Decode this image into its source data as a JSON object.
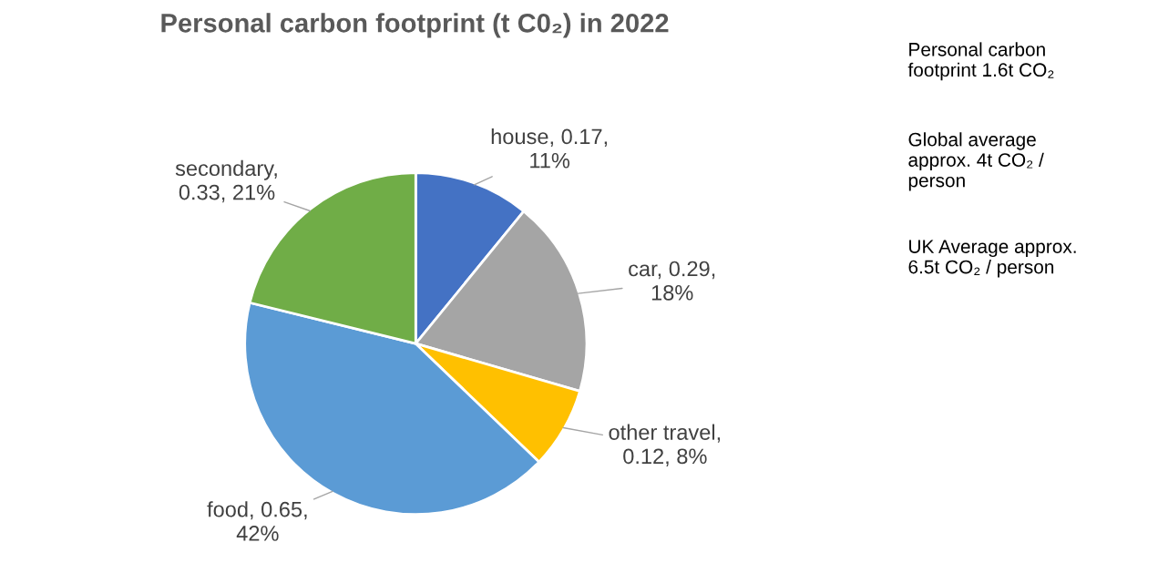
{
  "chart_data": {
    "type": "pie",
    "title": "Personal carbon footprint (t C0₂) in 2022",
    "categories": [
      "house",
      "car",
      "other travel",
      "food",
      "secondary"
    ],
    "values": [
      0.17,
      0.29,
      0.12,
      0.65,
      0.33
    ],
    "colors": [
      "#4472c4",
      "#a5a5a5",
      "#ffc000",
      "#5b9bd5",
      "#70ad47"
    ],
    "value_labels": [
      ", 0.17,\n11%",
      ", 0.29,\n18%",
      ",\n0.12, 8%",
      ", 0.65,\n42%",
      ",\n0.33, 21%"
    ],
    "annotations": [
      "Personal carbon\nfootprint 1.6t CO₂",
      "Global average\napprox. 4t CO₂ /\nperson",
      "UK Average approx.\n6.5t CO₂ / person"
    ],
    "legend": false
  }
}
